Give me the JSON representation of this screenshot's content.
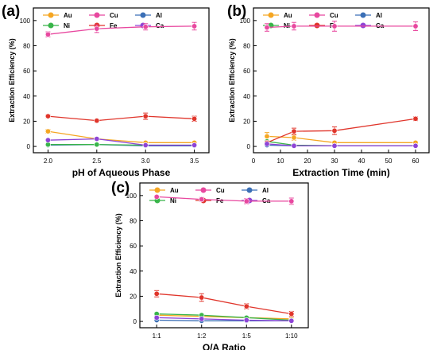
{
  "chart_data": [
    {
      "panel_label": "(a)",
      "type": "line",
      "xlabel": "pH of Aqueous Phase",
      "ylabel": "Extraction Efficiency (%)",
      "x_scale": "linear",
      "xlim": [
        1.85,
        3.65
      ],
      "ylim": [
        -5,
        110
      ],
      "x_ticks": [
        2.0,
        2.5,
        3.0,
        3.5
      ],
      "x_tick_labels": [
        "2.0",
        "2.5",
        "3.0",
        "3.5"
      ],
      "y_ticks": [
        0,
        20,
        40,
        60,
        80,
        100
      ],
      "y_tick_labels": [
        "0",
        "20",
        "40",
        "60",
        "80",
        "100"
      ],
      "legend_position": "top",
      "series": [
        {
          "name": "Au",
          "color": "#f5a623",
          "x": [
            2.0,
            2.5,
            3.0,
            3.5
          ],
          "values": [
            12,
            6,
            3,
            3
          ],
          "errors": [
            1.5,
            1,
            0.8,
            0.8
          ]
        },
        {
          "name": "Cu",
          "color": "#e8489f",
          "x": [
            2.0,
            2.5,
            3.0,
            3.5
          ],
          "values": [
            89,
            93.5,
            95,
            95.5
          ],
          "errors": [
            2,
            3,
            2.5,
            3
          ]
        },
        {
          "name": "Al",
          "color": "#3b6fb6",
          "x": [
            2.0,
            2.5,
            3.0,
            3.5
          ],
          "values": [
            1,
            1.5,
            0.5,
            0.5
          ],
          "errors": [
            0.5,
            0.5,
            0.5,
            0.5
          ]
        },
        {
          "name": "Ni",
          "color": "#39b54a",
          "x": [
            2.0,
            2.5,
            3.0,
            3.5
          ],
          "values": [
            1.5,
            1.5,
            1,
            1
          ],
          "errors": [
            0.5,
            0.5,
            0.5,
            0.5
          ]
        },
        {
          "name": "Fe",
          "color": "#e0352b",
          "x": [
            2.0,
            2.5,
            3.0,
            3.5
          ],
          "values": [
            24,
            20.5,
            24,
            22
          ],
          "errors": [
            1.2,
            1,
            2.5,
            2
          ]
        },
        {
          "name": "Ca",
          "color": "#8e44d6",
          "x": [
            2.0,
            2.5,
            3.0,
            3.5
          ],
          "values": [
            5,
            6,
            1,
            1
          ],
          "errors": [
            0.8,
            0.8,
            0.5,
            0.5
          ]
        }
      ]
    },
    {
      "panel_label": "(b)",
      "type": "line",
      "xlabel": "Extraction Time (min)",
      "ylabel": "Extraction Efficiency (%)",
      "x_scale": "linear",
      "xlim": [
        0,
        65
      ],
      "ylim": [
        -5,
        110
      ],
      "x_ticks": [
        0,
        10,
        20,
        30,
        40,
        50,
        60
      ],
      "x_tick_labels": [
        "0",
        "10",
        "20",
        "30",
        "40",
        "50",
        "60"
      ],
      "y_ticks": [
        0,
        20,
        40,
        60,
        80,
        100
      ],
      "y_tick_labels": [
        "0",
        "20",
        "40",
        "60",
        "80",
        "100"
      ],
      "legend_position": "top",
      "series": [
        {
          "name": "Au",
          "color": "#f5a623",
          "x": [
            5,
            15,
            30,
            60
          ],
          "values": [
            8,
            7,
            3,
            3
          ],
          "errors": [
            3,
            2,
            1,
            1
          ]
        },
        {
          "name": "Cu",
          "color": "#e8489f",
          "x": [
            5,
            15,
            30,
            60
          ],
          "values": [
            94.5,
            95.5,
            95.5,
            95.5
          ],
          "errors": [
            3,
            3,
            4,
            3.5
          ]
        },
        {
          "name": "Al",
          "color": "#3b6fb6",
          "x": [
            5,
            15,
            30,
            60
          ],
          "values": [
            1,
            0.5,
            0.5,
            0.5
          ],
          "errors": [
            0.5,
            0.5,
            0.5,
            0.5
          ]
        },
        {
          "name": "Ni",
          "color": "#39b54a",
          "x": [
            5,
            15,
            30,
            60
          ],
          "values": [
            4,
            1,
            0.5,
            0.5
          ],
          "errors": [
            1,
            0.5,
            0.5,
            0.5
          ]
        },
        {
          "name": "Fe",
          "color": "#e0352b",
          "x": [
            5,
            15,
            30,
            60
          ],
          "values": [
            3,
            12,
            12.5,
            22
          ],
          "errors": [
            1,
            2.5,
            3,
            1.5
          ]
        },
        {
          "name": "Ca",
          "color": "#8e44d6",
          "x": [
            5,
            15,
            30,
            60
          ],
          "values": [
            2,
            0.5,
            0.5,
            0.5
          ],
          "errors": [
            0.5,
            0.5,
            0.5,
            0.5
          ]
        }
      ]
    },
    {
      "panel_label": "(c)",
      "type": "line",
      "xlabel": "O/A Ratio",
      "ylabel": "Extraction Efficiency (%)",
      "x_scale": "category",
      "categories": [
        "1:1",
        "1:2",
        "1:5",
        "1:10"
      ],
      "ylim": [
        -5,
        110
      ],
      "y_ticks": [
        0,
        20,
        40,
        60,
        80,
        100
      ],
      "y_tick_labels": [
        "0",
        "20",
        "40",
        "60",
        "80",
        "100"
      ],
      "legend_position": "top",
      "series": [
        {
          "name": "Au",
          "color": "#f5a623",
          "values": [
            5,
            4,
            3,
            2
          ],
          "errors": [
            1,
            1,
            1,
            1
          ]
        },
        {
          "name": "Cu",
          "color": "#e8489f",
          "values": [
            99,
            97,
            95.5,
            95.5
          ],
          "errors": [
            1,
            1.5,
            2,
            2.5
          ]
        },
        {
          "name": "Al",
          "color": "#3b6fb6",
          "values": [
            1,
            0.5,
            0.5,
            0.5
          ],
          "errors": [
            0.5,
            0.5,
            0.5,
            0.5
          ]
        },
        {
          "name": "Ni",
          "color": "#39b54a",
          "values": [
            6,
            5,
            3,
            1
          ],
          "errors": [
            1,
            1,
            1,
            0.5
          ]
        },
        {
          "name": "Fe",
          "color": "#e0352b",
          "values": [
            22,
            19,
            12,
            6
          ],
          "errors": [
            2.5,
            3,
            2,
            2
          ]
        },
        {
          "name": "Ca",
          "color": "#8e44d6",
          "values": [
            3,
            2,
            1,
            0.5
          ],
          "errors": [
            1,
            0.8,
            0.5,
            0.5
          ]
        }
      ]
    }
  ]
}
